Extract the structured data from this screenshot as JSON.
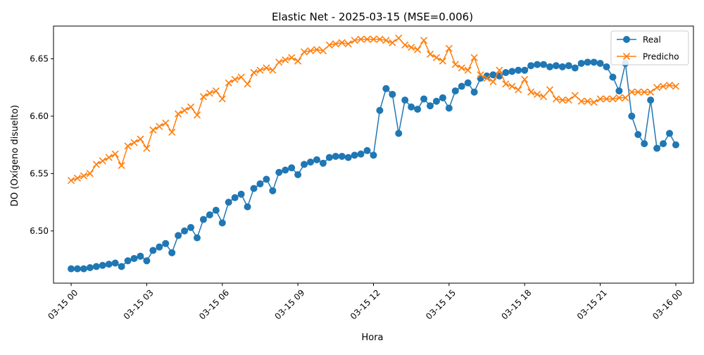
{
  "chart_data": {
    "type": "line",
    "title": "Elastic Net - 2025-03-15 (MSE=0.006)",
    "xlabel": "Hora",
    "ylabel": "DO (Oxígeno disuelto)",
    "xlim": [
      -0.7,
      24.7
    ],
    "ylim": [
      6.4545,
      6.6785
    ],
    "x_ticks": [
      {
        "hour": 0,
        "label": "03-15 00"
      },
      {
        "hour": 3,
        "label": "03-15 03"
      },
      {
        "hour": 6,
        "label": "03-15 06"
      },
      {
        "hour": 9,
        "label": "03-15 09"
      },
      {
        "hour": 12,
        "label": "03-15 12"
      },
      {
        "hour": 15,
        "label": "03-15 15"
      },
      {
        "hour": 18,
        "label": "03-15 18"
      },
      {
        "hour": 21,
        "label": "03-15 21"
      },
      {
        "hour": 24,
        "label": "03-16 00"
      }
    ],
    "y_ticks": [
      {
        "value": 6.5,
        "label": "6.50"
      },
      {
        "value": 6.55,
        "label": "6.55"
      },
      {
        "value": 6.6,
        "label": "6.60"
      },
      {
        "value": 6.65,
        "label": "6.65"
      }
    ],
    "grid": false,
    "legend_position": "top-right",
    "series": [
      {
        "name": "Real",
        "color": "#1f77b4",
        "marker": "circle",
        "x": [
          0,
          0.25,
          0.5,
          0.75,
          1,
          1.25,
          1.5,
          1.75,
          2,
          2.25,
          2.5,
          2.75,
          3,
          3.25,
          3.5,
          3.75,
          4,
          4.25,
          4.5,
          4.75,
          5,
          5.25,
          5.5,
          5.75,
          6,
          6.25,
          6.5,
          6.75,
          7,
          7.25,
          7.5,
          7.75,
          8,
          8.25,
          8.5,
          8.75,
          9,
          9.25,
          9.5,
          9.75,
          10,
          10.25,
          10.5,
          10.75,
          11,
          11.25,
          11.5,
          11.75,
          12,
          12.25,
          12.5,
          12.75,
          13,
          13.25,
          13.5,
          13.75,
          14,
          14.25,
          14.5,
          14.75,
          15,
          15.25,
          15.5,
          15.75,
          16,
          16.25,
          16.5,
          16.75,
          17,
          17.25,
          17.5,
          17.75,
          18,
          18.25,
          18.5,
          18.75,
          19,
          19.25,
          19.5,
          19.75,
          20,
          20.25,
          20.5,
          20.75,
          21,
          21.25,
          21.5,
          21.75,
          22,
          22.25,
          22.5,
          22.75,
          23,
          23.25,
          23.5,
          23.75,
          24
        ],
        "values": [
          6.467,
          6.467,
          6.467,
          6.468,
          6.469,
          6.47,
          6.471,
          6.472,
          6.469,
          6.474,
          6.476,
          6.478,
          6.474,
          6.483,
          6.486,
          6.489,
          6.481,
          6.496,
          6.5,
          6.503,
          6.494,
          6.51,
          6.514,
          6.518,
          6.507,
          6.525,
          6.529,
          6.532,
          6.521,
          6.537,
          6.541,
          6.545,
          6.535,
          6.551,
          6.553,
          6.555,
          6.549,
          6.558,
          6.56,
          6.562,
          6.559,
          6.564,
          6.565,
          6.565,
          6.564,
          6.566,
          6.567,
          6.57,
          6.566,
          6.605,
          6.624,
          6.619,
          6.585,
          6.614,
          6.608,
          6.606,
          6.615,
          6.609,
          6.613,
          6.616,
          6.607,
          6.622,
          6.626,
          6.629,
          6.621,
          6.633,
          6.635,
          6.636,
          6.635,
          6.638,
          6.639,
          6.64,
          6.64,
          6.644,
          6.645,
          6.645,
          6.643,
          6.644,
          6.643,
          6.644,
          6.642,
          6.646,
          6.647,
          6.647,
          6.646,
          6.643,
          6.634,
          6.622,
          6.646,
          6.6,
          6.584,
          6.576,
          6.614,
          6.572,
          6.576,
          6.585,
          6.575
        ]
      },
      {
        "name": "Predicho",
        "color": "#ff7f0e",
        "marker": "x",
        "x": [
          0,
          0.25,
          0.5,
          0.75,
          1,
          1.25,
          1.5,
          1.75,
          2,
          2.25,
          2.5,
          2.75,
          3,
          3.25,
          3.5,
          3.75,
          4,
          4.25,
          4.5,
          4.75,
          5,
          5.25,
          5.5,
          5.75,
          6,
          6.25,
          6.5,
          6.75,
          7,
          7.25,
          7.5,
          7.75,
          8,
          8.25,
          8.5,
          8.75,
          9,
          9.25,
          9.5,
          9.75,
          10,
          10.25,
          10.5,
          10.75,
          11,
          11.25,
          11.5,
          11.75,
          12,
          12.25,
          12.5,
          12.75,
          13,
          13.25,
          13.5,
          13.75,
          14,
          14.25,
          14.5,
          14.75,
          15,
          15.25,
          15.5,
          15.75,
          16,
          16.25,
          16.5,
          16.75,
          17,
          17.25,
          17.5,
          17.75,
          18,
          18.25,
          18.5,
          18.75,
          19,
          19.25,
          19.5,
          19.75,
          20,
          20.25,
          20.5,
          20.75,
          21,
          21.25,
          21.5,
          21.75,
          22,
          22.25,
          22.5,
          22.75,
          23,
          23.25,
          23.5,
          23.75,
          24
        ],
        "values": [
          6.544,
          6.546,
          6.548,
          6.55,
          6.558,
          6.561,
          6.564,
          6.567,
          6.557,
          6.574,
          6.577,
          6.58,
          6.572,
          6.588,
          6.591,
          6.594,
          6.586,
          6.602,
          6.605,
          6.608,
          6.601,
          6.617,
          6.62,
          6.622,
          6.615,
          6.629,
          6.632,
          6.634,
          6.628,
          6.638,
          6.64,
          6.642,
          6.64,
          6.647,
          6.649,
          6.651,
          6.648,
          6.656,
          6.657,
          6.658,
          6.657,
          6.662,
          6.663,
          6.664,
          6.663,
          6.666,
          6.667,
          6.667,
          6.667,
          6.667,
          6.666,
          6.664,
          6.668,
          6.662,
          6.66,
          6.658,
          6.666,
          6.654,
          6.651,
          6.648,
          6.659,
          6.645,
          6.642,
          6.64,
          6.651,
          6.636,
          6.633,
          6.63,
          6.64,
          6.628,
          6.626,
          6.623,
          6.632,
          6.621,
          6.619,
          6.617,
          6.623,
          6.615,
          6.614,
          6.614,
          6.618,
          6.613,
          6.613,
          6.612,
          6.615,
          6.615,
          6.615,
          6.616,
          6.616,
          6.621,
          6.621,
          6.621,
          6.621,
          6.625,
          6.626,
          6.627,
          6.626
        ]
      }
    ]
  }
}
